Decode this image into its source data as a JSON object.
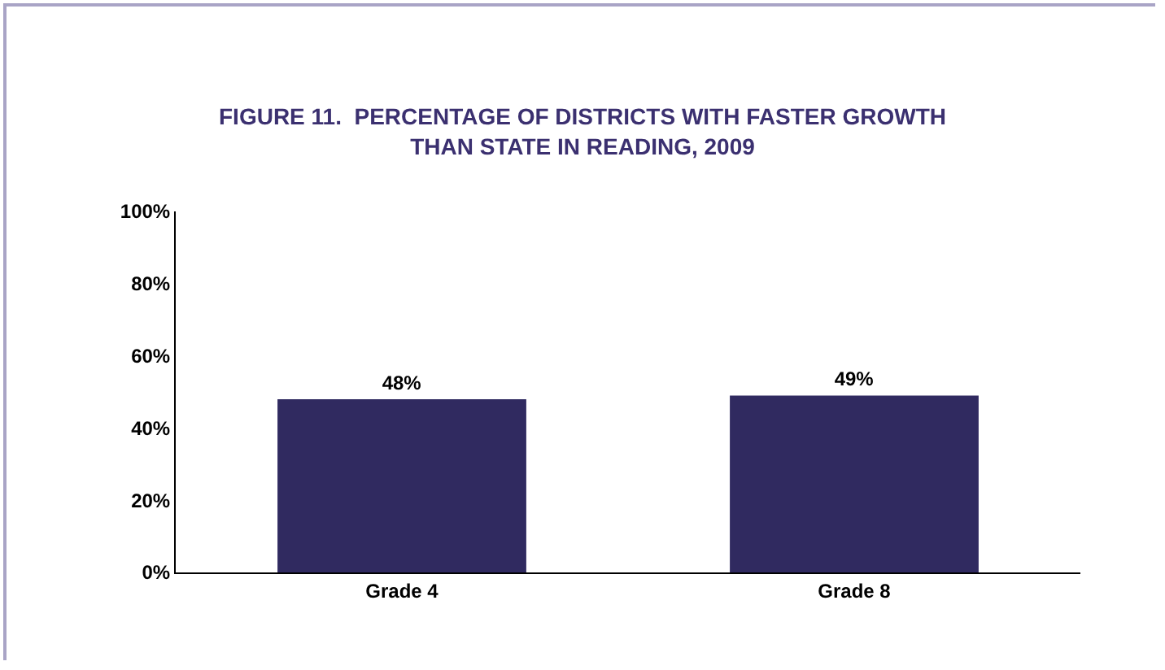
{
  "chart_data": {
    "type": "bar",
    "title": "FIGURE 11.  PERCENTAGE OF DISTRICTS WITH FASTER GROWTH THAN STATE IN READING, 2009",
    "categories": [
      "Grade 4",
      "Grade 8"
    ],
    "values": [
      48,
      49
    ],
    "value_labels": [
      "48%",
      "49%"
    ],
    "color": "#302a60",
    "ylim": [
      0,
      100
    ],
    "yticks": [
      {
        "value": 0,
        "label": "0%"
      },
      {
        "value": 20,
        "label": "20%"
      },
      {
        "value": 40,
        "label": "40%"
      },
      {
        "value": 60,
        "label": "60%"
      },
      {
        "value": 80,
        "label": "80%"
      },
      {
        "value": 100,
        "label": "100%"
      }
    ],
    "grid": false,
    "legend": false
  }
}
